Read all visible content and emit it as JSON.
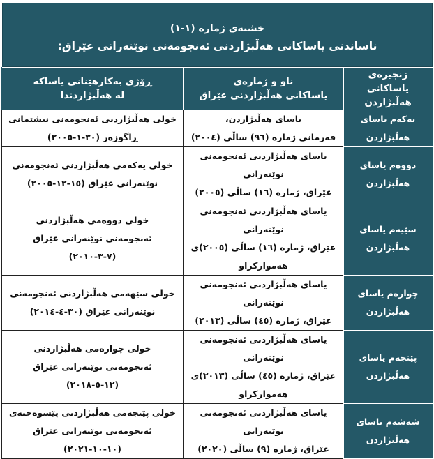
{
  "title": {
    "number": "خشتەی ژمارە (١-١)",
    "caption": "ناساندنی یاساکانی هەڵبژاردنی ئەنجومەنی نوێنەرانی عێراق:"
  },
  "headers": [
    [
      "زنجیرەی یاساکانی",
      "هەڵبژاردن"
    ],
    [
      "ناو و ژمارەی",
      "یاساکانی هەڵبژاردنی عێراق"
    ],
    [
      "ڕۆژی بەکارهێنانی یاساکە",
      "لە هەڵبژاردندا"
    ]
  ],
  "rows": [
    {
      "seq": [
        "یەکەم یاسای",
        "هەڵبژاردن"
      ],
      "law": [
        "یاسای هەڵبژاردن،",
        "فەرمانی ژمارە (٩٦) ساڵی (٢٠٠٤)"
      ],
      "date": [
        "خولی هەڵبژاردنی ئەنجومەنی نیشتمانی",
        "ڕاگوزەر (٣٠-١-٢٠٠٥)"
      ]
    },
    {
      "seq": [
        "دووەم یاسای",
        "هەڵبژاردن"
      ],
      "law": [
        "یاسای هەڵبژاردنی ئەنجومەنی نوێنەرانی",
        "عێراق، ژمارە (١٦) ساڵی (٢٠٠٥)"
      ],
      "date": [
        "خولی یەکەمی هەڵبژاردنی ئەنجومەنی",
        "نوێنەرانی عێراق (١٥-١٢-٢٠٠٥)"
      ]
    },
    {
      "seq": [
        "سێیەم یاسای",
        "هەڵبژاردن"
      ],
      "law": [
        "یاسای هەڵبژاردنی ئەنجومەنی نوێنەرانی",
        "عێراق، ژمارە (١٦) ساڵی (٢٠٠٥)ی",
        "هەموارکراو"
      ],
      "date": [
        "خولی دووەمی هەڵبژاردنی",
        "ئەنجومەنی نوێنەرانی عێراق",
        "(٧-٣-٢٠١٠)"
      ]
    },
    {
      "seq": [
        "چوارەم یاسای",
        "هەڵبژاردن"
      ],
      "law": [
        "یاسای هەڵبژاردنی ئەنجومەنی نوێنەرانی",
        "عێراق، ژمارە (٤٥) ساڵی (٢٠١٣)"
      ],
      "date": [
        "خولی سێهەمی هەڵبژاردنی ئەنجومەنی",
        "نوێنەرانی عێراق (٣٠-٤-٢٠١٤)"
      ]
    },
    {
      "seq": [
        "پێنجەم یاسای",
        "هەڵبژاردن"
      ],
      "law": [
        "یاسای هەڵبژاردنی ئەنجومەنی نوێنەرانی",
        "عێراق، ژمارە (٤٥) ساڵی (٢٠١٣)ی",
        "هەموارکراو"
      ],
      "date": [
        "خولی  چوارەمی هەڵبژاردنی",
        "ئەنجومەنی نوێنەرانی عێراق",
        "(١٢-٥-٢٠١٨)"
      ]
    },
    {
      "seq": [
        "شەشەم یاسای",
        "هەڵبژاردن"
      ],
      "law": [
        "یاسای هەڵبژاردنی ئەنجومەنی نوێنەرانی",
        "عێراق، ژمارە (٩) ساڵی (٢٠٢٠)"
      ],
      "date": [
        "خولی پێنجەمی هەڵبژاردنی پێشوەختەی",
        "ئەنجومەنی نوێنەرانی عێراق (١٠-١٠-٢٠٢١)"
      ]
    }
  ],
  "colors": {
    "header_bg": "#245867",
    "header_text": "#ffffff",
    "body_text": "#111111"
  }
}
